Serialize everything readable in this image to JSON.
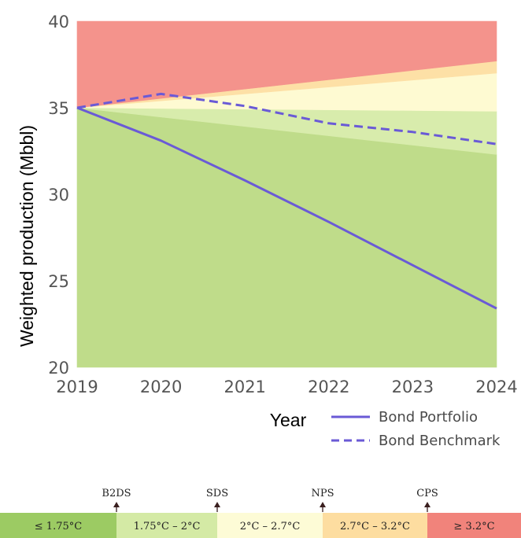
{
  "chart_data": {
    "type": "line",
    "xlabel": "Year",
    "ylabel": "Weighted production (Mbbl)",
    "x": [
      2019,
      2020,
      2021,
      2022,
      2023,
      2024
    ],
    "xlim": [
      2019,
      2024
    ],
    "ylim": [
      20,
      40
    ],
    "yticks": [
      20,
      25,
      30,
      35,
      40
    ],
    "series": [
      {
        "name": "Bond Portfolio",
        "style": "solid",
        "color": "#6a5ad6",
        "values": [
          35.0,
          33.1,
          30.8,
          28.4,
          25.9,
          23.4
        ]
      },
      {
        "name": "Bond Benchmark",
        "style": "dashed",
        "color": "#6a5ad6",
        "values": [
          35.0,
          35.8,
          35.1,
          34.1,
          33.6,
          32.9
        ]
      }
    ],
    "scenario_bands": {
      "x": [
        2019,
        2024
      ],
      "boundaries": [
        {
          "name": "B2DS",
          "values": [
            35.0,
            32.3
          ]
        },
        {
          "name": "SDS",
          "values": [
            35.0,
            34.8
          ]
        },
        {
          "name": "NPS",
          "values": [
            35.0,
            37.0
          ]
        },
        {
          "name": "CPS",
          "values": [
            35.0,
            37.7
          ]
        }
      ],
      "fills": [
        "#bfdc8a",
        "#d8ecac",
        "#fefad2",
        "#fde0a6",
        "#f4938c"
      ]
    },
    "legend_position": "bottom-right",
    "grid": false
  },
  "scale_legend": {
    "markers": [
      "B2DS",
      "SDS",
      "NPS",
      "CPS"
    ],
    "bands": [
      {
        "label": "≤ 1.75°C",
        "color": "#9ccb63"
      },
      {
        "label": "1.75°C – 2°C",
        "color": "#d4eaa5"
      },
      {
        "label": "2°C – 2.7°C",
        "color": "#fdfbd6"
      },
      {
        "label": "2.7°C – 3.2°C",
        "color": "#fddda0"
      },
      {
        "label": "≥ 3.2°C",
        "color": "#f1837b"
      }
    ]
  }
}
